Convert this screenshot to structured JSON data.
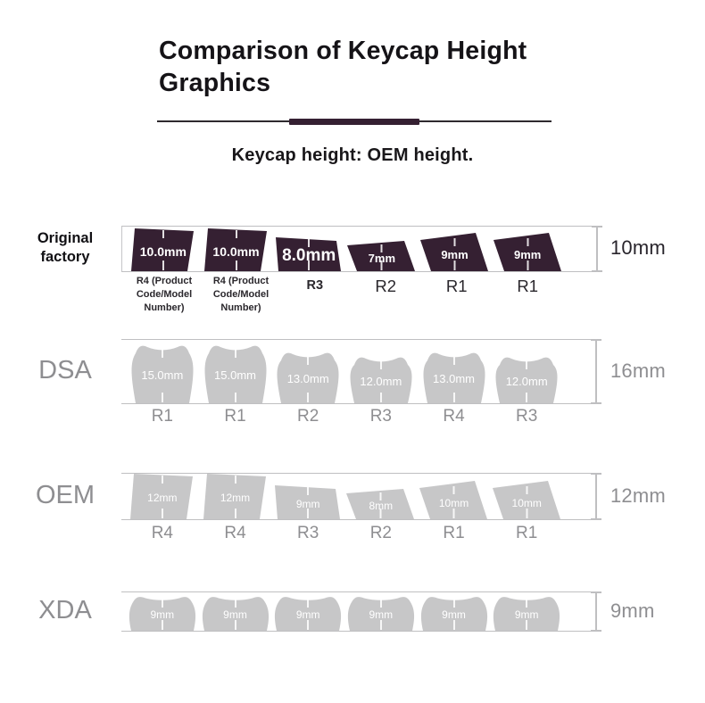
{
  "header": {
    "title": "Comparison of Keycap Height\nGraphics",
    "subtitle": "Keycap height: OEM height."
  },
  "palette": {
    "dark_keycap": "#352032",
    "gray_keycap": "#c7c7c8",
    "gray_text": "#8e8e91",
    "dark_text": "#151317",
    "row_code_dark_text": "#2a272c",
    "guide_line": "#bfbfc1",
    "tick": "#ffffff"
  },
  "rows": [
    {
      "name": "Original factory",
      "profile_height": "10mm",
      "caps": [
        {
          "height_label": "10.0mm",
          "height_mm": 10,
          "row_code": "R4 (Product Code/Model Number)",
          "shape": "r4"
        },
        {
          "height_label": "10.0mm",
          "height_mm": 10,
          "row_code": "R4 (Product Code/Model Number)",
          "shape": "r4"
        },
        {
          "height_label": "8.0mm",
          "height_mm": 8,
          "row_code": "R3",
          "shape": "r3",
          "emphasis": true
        },
        {
          "height_label": "7mm",
          "height_mm": 7,
          "row_code": "R2",
          "shape": "r2"
        },
        {
          "height_label": "9mm",
          "height_mm": 9,
          "row_code": "R1",
          "shape": "r1"
        },
        {
          "height_label": "9mm",
          "height_mm": 9,
          "row_code": "R1",
          "shape": "r1"
        }
      ]
    },
    {
      "name": "DSA",
      "profile_height": "16mm",
      "caps": [
        {
          "height_label": "15.0mm",
          "height_mm": 15,
          "row_code": "R1",
          "shape": "dsa"
        },
        {
          "height_label": "15.0mm",
          "height_mm": 15,
          "row_code": "R1",
          "shape": "dsa"
        },
        {
          "height_label": "13.0mm",
          "height_mm": 13,
          "row_code": "R2",
          "shape": "dsa"
        },
        {
          "height_label": "12.0mm",
          "height_mm": 12,
          "row_code": "R3",
          "shape": "dsa"
        },
        {
          "height_label": "13.0mm",
          "height_mm": 13,
          "row_code": "R4",
          "shape": "dsa"
        },
        {
          "height_label": "12.0mm",
          "height_mm": 12,
          "row_code": "R3",
          "shape": "dsa"
        }
      ]
    },
    {
      "name": "OEM",
      "profile_height": "12mm",
      "caps": [
        {
          "height_label": "12mm",
          "height_mm": 12,
          "row_code": "R4",
          "shape": "r4"
        },
        {
          "height_label": "12mm",
          "height_mm": 12,
          "row_code": "R4",
          "shape": "r4"
        },
        {
          "height_label": "9mm",
          "height_mm": 9,
          "row_code": "R3",
          "shape": "r3"
        },
        {
          "height_label": "8mm",
          "height_mm": 8,
          "row_code": "R2",
          "shape": "r2"
        },
        {
          "height_label": "10mm",
          "height_mm": 10,
          "row_code": "R1",
          "shape": "r1"
        },
        {
          "height_label": "10mm",
          "height_mm": 10,
          "row_code": "R1",
          "shape": "r1"
        }
      ]
    },
    {
      "name": "XDA",
      "profile_height": "9mm",
      "caps": [
        {
          "height_label": "9mm",
          "height_mm": 9,
          "shape": "xda"
        },
        {
          "height_label": "9mm",
          "height_mm": 9,
          "shape": "xda"
        },
        {
          "height_label": "9mm",
          "height_mm": 9,
          "shape": "xda"
        },
        {
          "height_label": "9mm",
          "height_mm": 9,
          "shape": "xda"
        },
        {
          "height_label": "9mm",
          "height_mm": 9,
          "shape": "xda"
        },
        {
          "height_label": "9mm",
          "height_mm": 9,
          "shape": "xda"
        }
      ]
    }
  ]
}
